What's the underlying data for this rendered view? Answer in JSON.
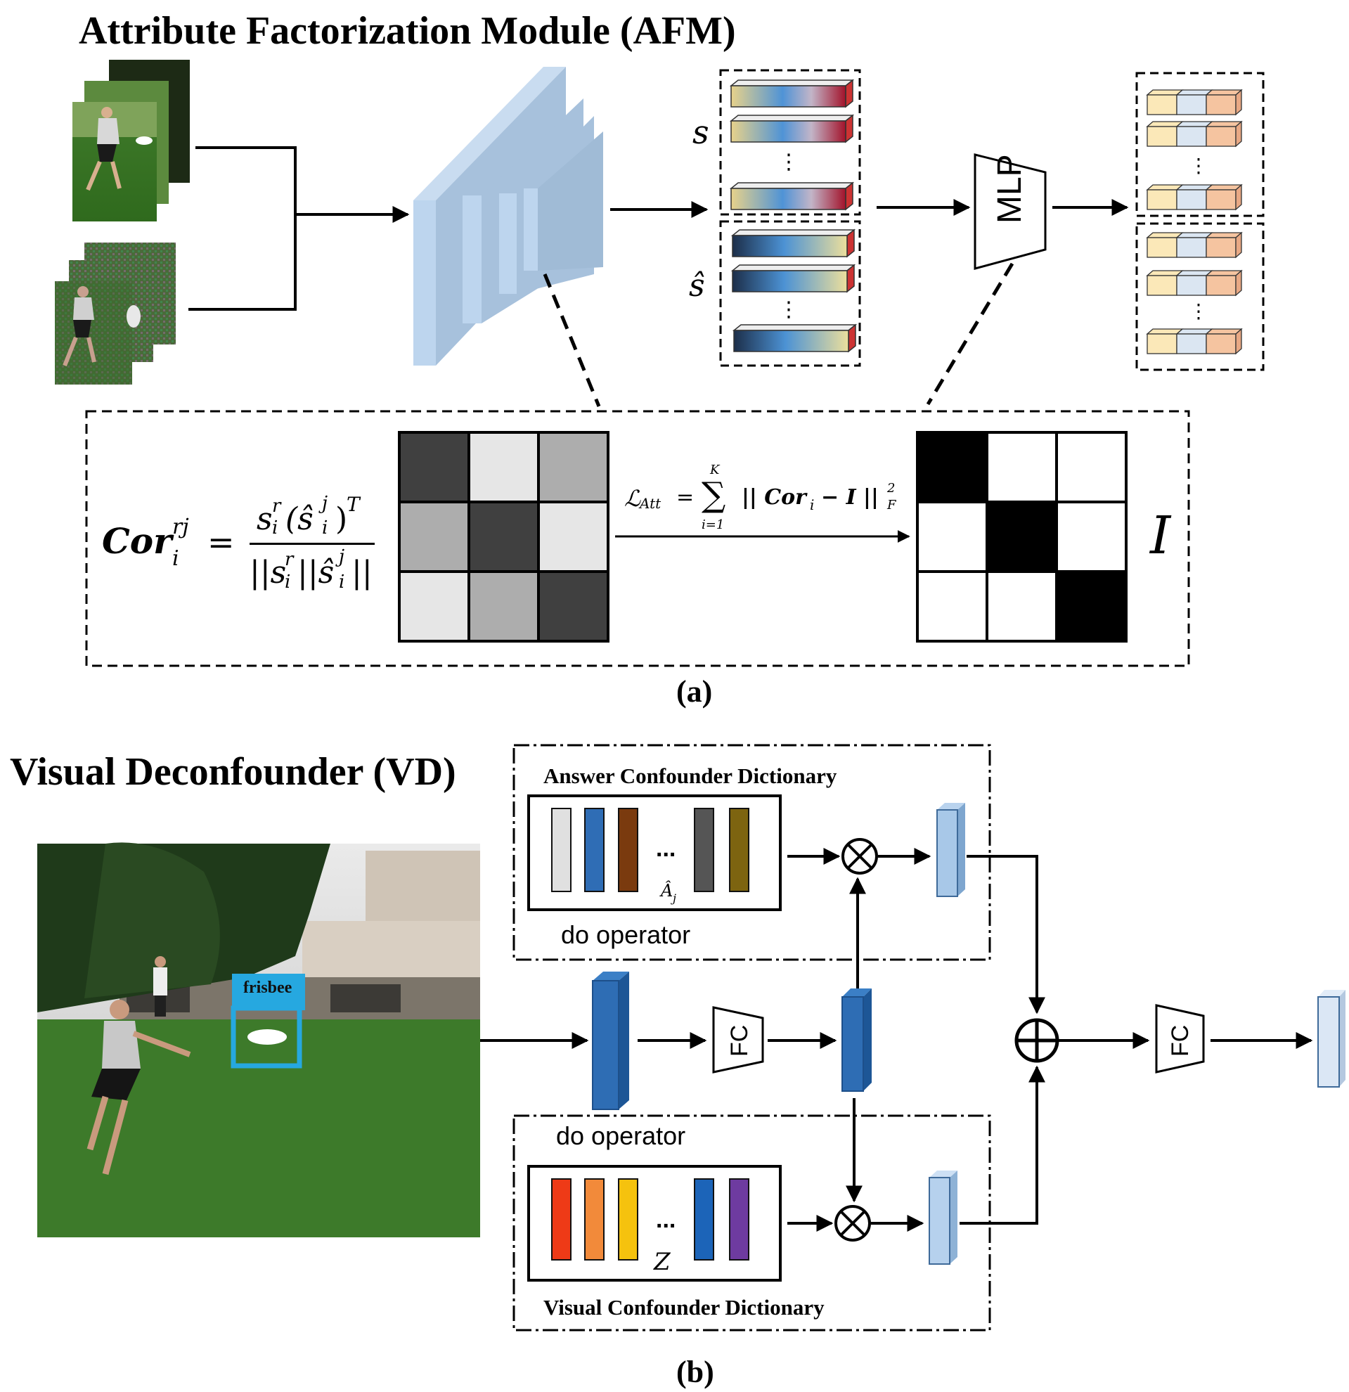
{
  "afm": {
    "title": "Attribute Factorization Module (AFM)",
    "label_s": "s",
    "label_s_hat": "ŝ",
    "mlp_label": "MLP",
    "cor_lhs": "Cor",
    "cor_lhs_sup": "rj",
    "cor_lhs_sub": "i",
    "cor_equals": "=",
    "cor_numerator": "s",
    "cor_numerator_rest": "(ŝ",
    "cor_numerator_T": ")",
    "cor_denominator": "||s",
    "cor_denominator_rest": "||ŝ",
    "cor_denominator_end": "||",
    "sup_r": "r",
    "sub_i": "i",
    "sup_j": "j",
    "sup_T": "T",
    "loss_lhs": "ℒ",
    "loss_lhs_sub": "Att",
    "loss_eq": "=",
    "loss_sum": "∑",
    "loss_sum_top": "K",
    "loss_sum_bottom": "i=1",
    "loss_body": "|| Cor",
    "loss_body_sub": "i",
    "loss_body_rest": "− I ||",
    "loss_body_sup": "2",
    "loss_body_sub2": "F",
    "identity_label": "I",
    "caption": "(a)",
    "correlation_matrix": [
      [
        0.25,
        0.9,
        0.68
      ],
      [
        0.68,
        0.25,
        0.9
      ],
      [
        0.9,
        0.68,
        0.25
      ]
    ],
    "identity_matrix": [
      [
        1,
        0,
        0
      ],
      [
        0,
        1,
        0
      ],
      [
        0,
        0,
        1
      ]
    ]
  },
  "vd": {
    "title": "Visual Deconfounder (VD)",
    "answer_dict_title": "Answer Confounder Dictionary",
    "answer_dict_symbol": "Â",
    "answer_dict_symbol_sub": "j",
    "visual_dict_title": "Visual Confounder Dictionary",
    "visual_dict_symbol": "Z",
    "do_operator_top": "do  operator",
    "do_operator_bottom": "do  operator",
    "detection_label": "frisbee",
    "fc_label_1": "FC",
    "fc_label_2": "FC",
    "ellipsis": "...",
    "caption": "(b)",
    "answer_dict_colors": [
      "#e0e0e0",
      "#2f6db5",
      "#7a3a0e",
      "#555555",
      "#7d6410"
    ],
    "visual_dict_colors": [
      "#ee3a17",
      "#f28a3a",
      "#f5c20e",
      "#1c64b8",
      "#6e3ba0"
    ]
  },
  "colors": {
    "accent_blue": "#2e6db4",
    "light_blue": "#a8c8e8",
    "box_blue": "#26a8e0"
  }
}
